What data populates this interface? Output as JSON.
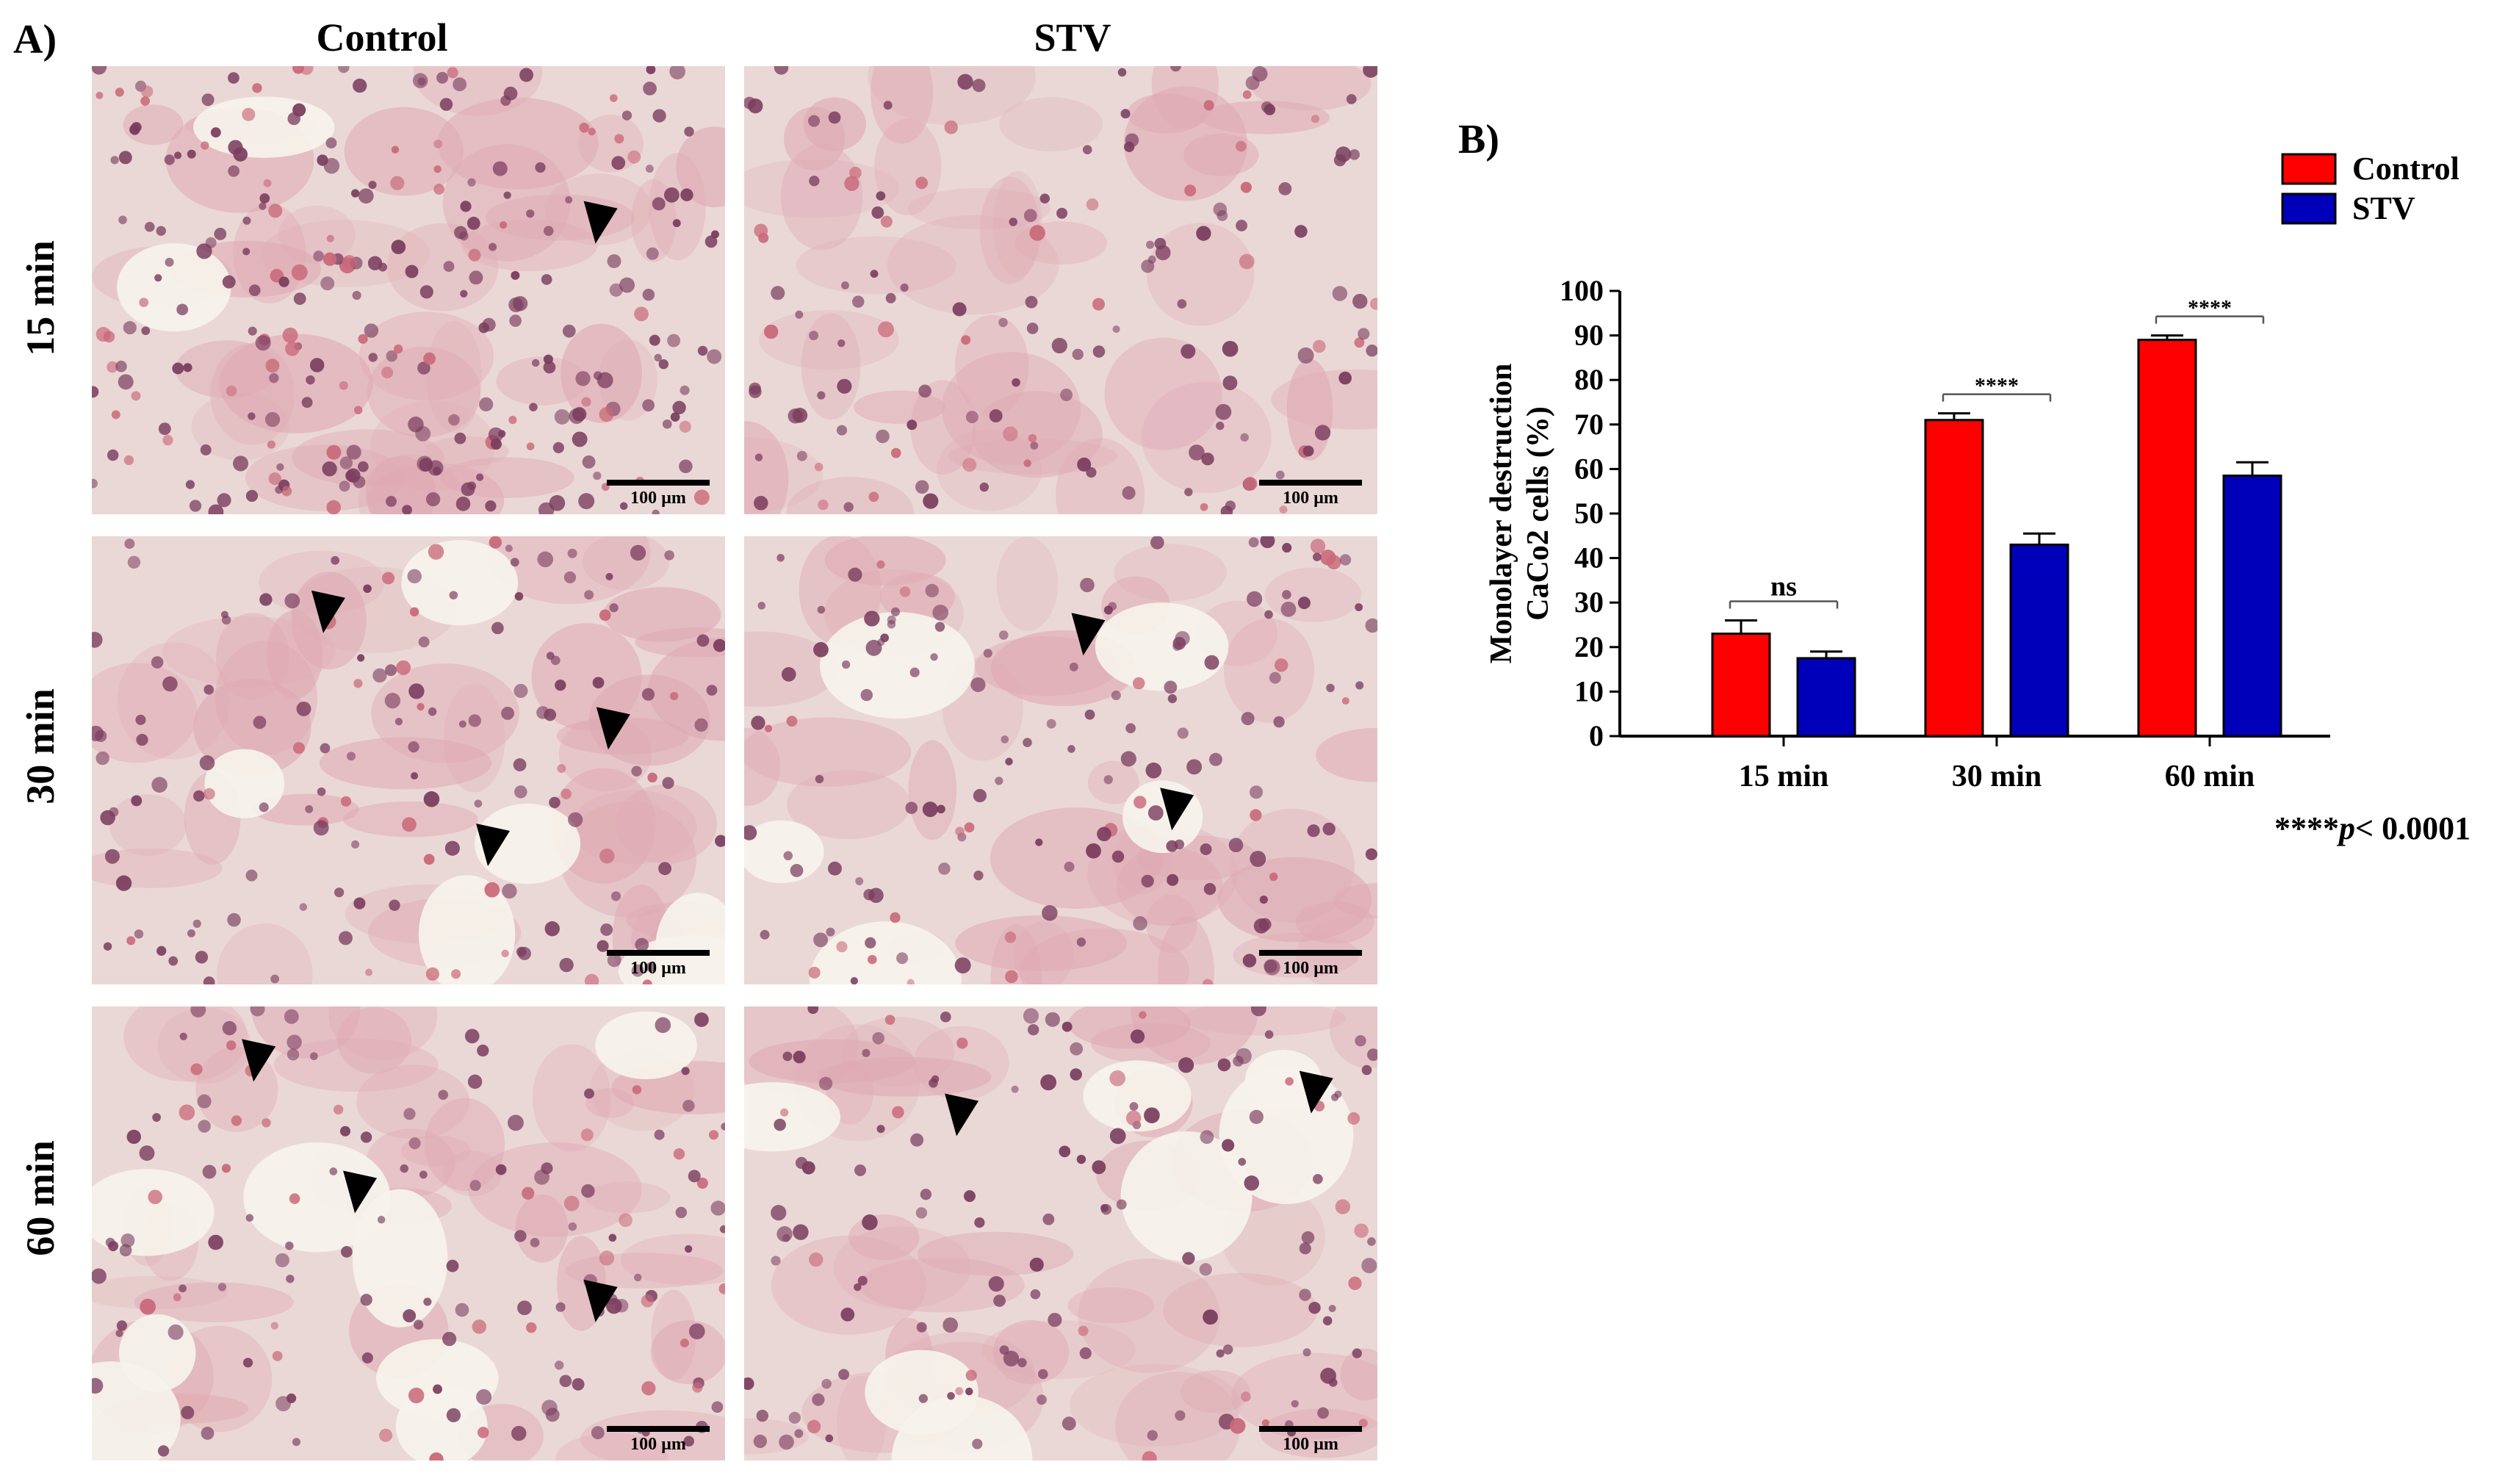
{
  "panel_a": {
    "label": "A)",
    "columns": [
      "Control",
      "STV"
    ],
    "rows": [
      "15 min",
      "30 min",
      "60 min"
    ],
    "scale_bar_label": "100 µm",
    "tissue_colors": {
      "background": "#ead8d6",
      "stroma": "#dfa9b3",
      "nuclei": "#7a3d5e",
      "clear": "#f6f3ec",
      "red_cells": "#c9687a"
    },
    "images": [
      {
        "row": "15 min",
        "column": "Control",
        "arrowheads": 1
      },
      {
        "row": "15 min",
        "column": "STV",
        "arrowheads": 0
      },
      {
        "row": "30 min",
        "column": "Control",
        "arrowheads": 3
      },
      {
        "row": "30 min",
        "column": "STV",
        "arrowheads": 2
      },
      {
        "row": "60 min",
        "column": "Control",
        "arrowheads": 3
      },
      {
        "row": "60 min",
        "column": "STV",
        "arrowheads": 2
      }
    ]
  },
  "panel_b": {
    "label": "B)",
    "footnote_stars": "****",
    "footnote_p": "p",
    "footnote_value": "< 0.0001"
  },
  "chart_data": {
    "type": "bar",
    "categories": [
      "15 min",
      "30 min",
      "60 min"
    ],
    "series": [
      {
        "name": "Control",
        "color": "#ff0000",
        "values": [
          23,
          71,
          89
        ],
        "errors": [
          3,
          1.5,
          1
        ]
      },
      {
        "name": "STV",
        "color": "#0000bb",
        "values": [
          17.5,
          43,
          58.5
        ],
        "errors": [
          1.5,
          2.5,
          3
        ]
      }
    ],
    "significance": [
      "ns",
      "****",
      "****"
    ],
    "ylabel_line1": "Monolayer destruction",
    "ylabel_line2": "CaCo2 cells (%)",
    "xlabel": "",
    "ylim": [
      0,
      100
    ],
    "yticks": [
      0,
      10,
      20,
      30,
      40,
      50,
      60,
      70,
      80,
      90,
      100
    ],
    "grid": false,
    "legend_position": "top-right"
  }
}
